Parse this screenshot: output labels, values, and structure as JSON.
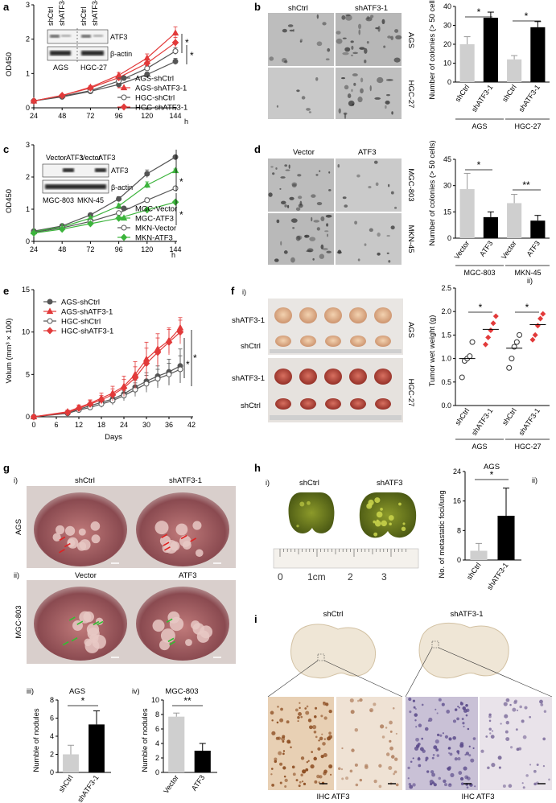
{
  "panels": {
    "a": {
      "label": "a",
      "ylabel": "OD450",
      "xunit": "h",
      "xticks": [
        "24",
        "48",
        "72",
        "96",
        "120",
        "144"
      ],
      "yticks": [
        "0",
        "1",
        "2",
        "3"
      ],
      "legend": [
        "AGS-shCtrl",
        "AGS-shATF3-1",
        "HGC-shCtrl",
        "HGC-shATF3-1"
      ],
      "blot": {
        "lanes": [
          "shCtrl",
          "shATF3-1",
          "shCtrl",
          "shATF3-1"
        ],
        "rows": [
          "ATF3",
          "β-actin"
        ],
        "cells": [
          "AGS",
          "HGC-27"
        ]
      },
      "sig": [
        "*",
        "*"
      ]
    },
    "b": {
      "label": "b",
      "cols": [
        "shCtrl",
        "shATF3-1"
      ],
      "rows": [
        "AGS",
        "HGC-27"
      ],
      "ylabel": "Number of colonies (> 50 cells)",
      "yticks": [
        "0",
        "10",
        "20",
        "30",
        "40"
      ],
      "bars": [
        "shCtrl",
        "shATF3-1",
        "shCtrl",
        "shATF3-1"
      ],
      "groups": [
        "AGS",
        "HGC-27"
      ],
      "sig": [
        "*",
        "*"
      ]
    },
    "c": {
      "label": "c",
      "ylabel": "OD450",
      "xunit": "h",
      "xticks": [
        "24",
        "48",
        "72",
        "96",
        "120",
        "144"
      ],
      "yticks": [
        "0",
        "1",
        "2",
        "3"
      ],
      "legend": [
        "MGC-Vector",
        "MGC-ATF3",
        "MKN-Vector",
        "MKN-ATF3"
      ],
      "blot": {
        "lanes": [
          "Vector",
          "ATF3",
          "Vector",
          "ATF3"
        ],
        "rows": [
          "ATF3",
          "β-actin"
        ],
        "cells": [
          "MGC-803",
          "MKN-45"
        ]
      },
      "sig": [
        "*",
        "*"
      ]
    },
    "d": {
      "label": "d",
      "cols": [
        "Vector",
        "ATF3"
      ],
      "rows": [
        "MGC-803",
        "MKN-45"
      ],
      "ylabel": "Number of colonies (> 50 cells)",
      "yticks": [
        "0",
        "15",
        "30",
        "45"
      ],
      "bars": [
        "Vector",
        "ATF3",
        "Vector",
        "ATF3"
      ],
      "groups": [
        "MGC-803",
        "MKN-45"
      ],
      "sig": [
        "*",
        "**"
      ]
    },
    "e": {
      "label": "e",
      "ylabel": "Volum (mm³ × 100)",
      "xlabel": "Days",
      "xticks": [
        "0",
        "6",
        "12",
        "18",
        "24",
        "30",
        "36",
        "42"
      ],
      "yticks": [
        "0",
        "5",
        "10",
        "15"
      ],
      "legend": [
        "AGS-shCtrl",
        "AGS-shATF3-1",
        "HGC-shCtrl",
        "HGC-shATF3-1"
      ],
      "sig": [
        "*",
        "*"
      ]
    },
    "f": {
      "label": "f",
      "sub_i": "i)",
      "sub_ii": "ii)",
      "rows": [
        "shATF3-1",
        "shCtrl",
        "shATF3-1",
        "shCtrl"
      ],
      "cells": [
        "AGS",
        "HGC-27"
      ],
      "ylabel": "Tumor wet weight (g)",
      "yticks": [
        "0.0",
        "0.5",
        "1.0",
        "1.5",
        "2.0",
        "2.5"
      ],
      "cats": [
        "shCtrl",
        "shATF3-1",
        "shCtrl",
        "shATF3-1"
      ],
      "groups": [
        "AGS",
        "HGC-27"
      ],
      "sig": [
        "*",
        "*"
      ]
    },
    "g": {
      "label": "g",
      "sub_i": "i)",
      "sub_ii": "ii)",
      "sub_iii": "iii)",
      "sub_iv": "iv)",
      "cols_i": [
        "shCtrl",
        "shATF3-1"
      ],
      "cols_ii": [
        "Vector",
        "ATF3"
      ],
      "row_i": "AGS",
      "row_ii": "MGC-803",
      "iii_title": "AGS",
      "iv_title": "MGC-803",
      "ylabel": "Numble of nodules",
      "iii_yticks": [
        "0",
        "2",
        "4",
        "6",
        "8"
      ],
      "iv_yticks": [
        "0",
        "2",
        "4",
        "6",
        "8",
        "10"
      ],
      "iii_cats": [
        "shCtrl",
        "shATF3-1"
      ],
      "iv_cats": [
        "Vector",
        "ATF3"
      ],
      "iii_sig": "*",
      "iv_sig": "**"
    },
    "h": {
      "label": "h",
      "sub_i": "i)",
      "sub_ii": "ii)",
      "cols": [
        "shCtrl",
        "shATF3"
      ],
      "ruler": [
        "0",
        "1cm",
        "2",
        "3"
      ],
      "title": "AGS",
      "ylabel": "No. of metastatic foci/lung",
      "yticks": [
        "0",
        "8",
        "16",
        "24"
      ],
      "cats": [
        "shCtrl",
        "shATF3-1"
      ],
      "sig": "*"
    },
    "i": {
      "label": "i",
      "cols": [
        "shCtrl",
        "shATF3-1"
      ],
      "caption": "IHC ATF3"
    }
  },
  "colors": {
    "ctrl": "#555555",
    "treat": "#e23a3a",
    "green": "#3cb43c",
    "bar_light": "#cfcfcf",
    "bar_dark": "#000000"
  },
  "chart_data": [
    {
      "panel": "a",
      "type": "line",
      "xlabel": "h",
      "ylabel": "OD450",
      "ylim": [
        0,
        3
      ],
      "x": [
        24,
        48,
        72,
        96,
        120,
        144
      ],
      "series": [
        {
          "name": "AGS-shCtrl",
          "values": [
            0.2,
            0.32,
            0.48,
            0.68,
            0.97,
            1.35
          ],
          "err": [
            0.02,
            0.03,
            0.04,
            0.05,
            0.07,
            0.09
          ]
        },
        {
          "name": "AGS-shATF3-1",
          "values": [
            0.2,
            0.36,
            0.6,
            0.95,
            1.45,
            2.18
          ],
          "err": [
            0.02,
            0.03,
            0.05,
            0.08,
            0.12,
            0.18
          ]
        },
        {
          "name": "HGC-shCtrl",
          "values": [
            0.2,
            0.34,
            0.5,
            0.78,
            1.15,
            1.65
          ],
          "err": [
            0.02,
            0.03,
            0.04,
            0.06,
            0.08,
            0.1
          ]
        },
        {
          "name": "HGC-shATF3-1",
          "values": [
            0.2,
            0.36,
            0.58,
            0.88,
            1.3,
            1.9
          ],
          "err": [
            0.02,
            0.03,
            0.04,
            0.07,
            0.1,
            0.15
          ]
        }
      ]
    },
    {
      "panel": "b",
      "type": "bar",
      "ylabel": "Number of colonies (> 50 cells)",
      "ylim": [
        0,
        40
      ],
      "categories": [
        "shCtrl",
        "shATF3-1",
        "shCtrl",
        "shATF3-1"
      ],
      "values": [
        20,
        34,
        12,
        29
      ],
      "err": [
        4,
        3,
        2,
        3
      ]
    },
    {
      "panel": "c",
      "type": "line",
      "xlabel": "h",
      "ylabel": "OD450",
      "ylim": [
        0,
        3
      ],
      "x": [
        24,
        48,
        72,
        96,
        120,
        144
      ],
      "series": [
        {
          "name": "MGC-Vector",
          "values": [
            0.32,
            0.48,
            0.82,
            1.32,
            2.1,
            2.62
          ],
          "err": [
            0.03,
            0.04,
            0.05,
            0.07,
            0.12,
            0.05
          ]
        },
        {
          "name": "MGC-ATF3",
          "values": [
            0.3,
            0.45,
            0.72,
            1.1,
            1.75,
            2.2
          ],
          "err": [
            0.03,
            0.04,
            0.04,
            0.06,
            0.1,
            0.05
          ]
        },
        {
          "name": "MKN-Vector",
          "values": [
            0.28,
            0.42,
            0.62,
            0.88,
            1.28,
            1.65
          ],
          "err": [
            0.02,
            0.03,
            0.04,
            0.05,
            0.07,
            0.05
          ]
        },
        {
          "name": "MKN-ATF3",
          "values": [
            0.26,
            0.38,
            0.55,
            0.72,
            0.98,
            1.22
          ],
          "err": [
            0.02,
            0.03,
            0.03,
            0.04,
            0.05,
            0.04
          ]
        }
      ]
    },
    {
      "panel": "d",
      "type": "bar",
      "ylabel": "Number of colonies (> 50 cells)",
      "ylim": [
        0,
        45
      ],
      "categories": [
        "Vector",
        "ATF3",
        "Vector",
        "ATF3"
      ],
      "values": [
        28,
        12,
        20,
        10
      ],
      "err": [
        9,
        3,
        5,
        3
      ]
    },
    {
      "panel": "e",
      "type": "line",
      "xlabel": "Days",
      "ylabel": "Volum (mm³ × 100)",
      "ylim": [
        0,
        15
      ],
      "x": [
        0,
        9,
        12,
        15,
        18,
        21,
        24,
        27,
        30,
        33,
        36,
        39
      ],
      "series": [
        {
          "name": "AGS-shCtrl",
          "values": [
            0,
            0.5,
            0.9,
            1.3,
            1.7,
            2.1,
            2.7,
            3.5,
            4.2,
            4.8,
            5.3,
            6.0
          ],
          "err": [
            0,
            0.2,
            0.2,
            0.3,
            0.4,
            0.5,
            0.6,
            0.8,
            1.0,
            1.2,
            1.5,
            2.0
          ]
        },
        {
          "name": "AGS-shATF3-1",
          "values": [
            0,
            0.6,
            1.1,
            1.6,
            2.2,
            2.8,
            3.6,
            5.0,
            6.8,
            8.0,
            9.0,
            10.5
          ],
          "err": [
            0,
            0.2,
            0.3,
            0.4,
            0.6,
            0.8,
            1.2,
            1.5,
            2.0,
            1.8,
            1.5,
            1.2
          ]
        },
        {
          "name": "HGC-shCtrl",
          "values": [
            0,
            0.4,
            0.8,
            1.1,
            1.5,
            1.9,
            2.5,
            3.2,
            3.9,
            4.5,
            5.0,
            5.6
          ],
          "err": [
            0,
            0.2,
            0.2,
            0.3,
            0.4,
            0.5,
            0.6,
            0.8,
            1.0,
            1.1,
            1.3,
            1.6
          ]
        },
        {
          "name": "HGC-shATF3-1",
          "values": [
            0,
            0.5,
            1.0,
            1.5,
            2.0,
            2.6,
            3.4,
            4.6,
            6.3,
            7.6,
            8.8,
            10.0
          ],
          "err": [
            0,
            0.2,
            0.3,
            0.4,
            0.5,
            0.7,
            1.0,
            1.3,
            1.8,
            1.7,
            1.5,
            1.4
          ]
        }
      ]
    },
    {
      "panel": "f-ii",
      "type": "scatter",
      "ylabel": "Tumor wet weight (g)",
      "ylim": [
        0,
        2.5
      ],
      "categories": [
        "shCtrl",
        "shATF3-1",
        "shCtrl",
        "shATF3-1"
      ],
      "points": [
        [
          0.6,
          0.95,
          1.0,
          1.05,
          1.35
        ],
        [
          1.3,
          1.45,
          1.6,
          1.75,
          1.9
        ],
        [
          0.8,
          1.0,
          1.25,
          1.35,
          1.5
        ],
        [
          1.4,
          1.5,
          1.7,
          1.85,
          1.95
        ]
      ],
      "means": [
        1.0,
        1.62,
        1.22,
        1.72
      ]
    },
    {
      "panel": "g-iii",
      "type": "bar",
      "ylabel": "Numble of nodules",
      "ylim": [
        0,
        8
      ],
      "categories": [
        "shCtrl",
        "shATF3-1"
      ],
      "values": [
        2.0,
        5.3
      ],
      "err": [
        1.0,
        1.5
      ]
    },
    {
      "panel": "g-iv",
      "type": "bar",
      "ylabel": "Numble of nodules",
      "ylim": [
        0,
        10
      ],
      "categories": [
        "Vector",
        "ATF3"
      ],
      "values": [
        7.7,
        3.0
      ],
      "err": [
        0.5,
        1.0
      ]
    },
    {
      "panel": "h-ii",
      "type": "bar",
      "ylabel": "No. of metastatic foci/lung",
      "ylim": [
        0,
        24
      ],
      "categories": [
        "shCtrl",
        "shATF3-1"
      ],
      "values": [
        2.5,
        12
      ],
      "err": [
        2,
        7.5
      ]
    }
  ]
}
